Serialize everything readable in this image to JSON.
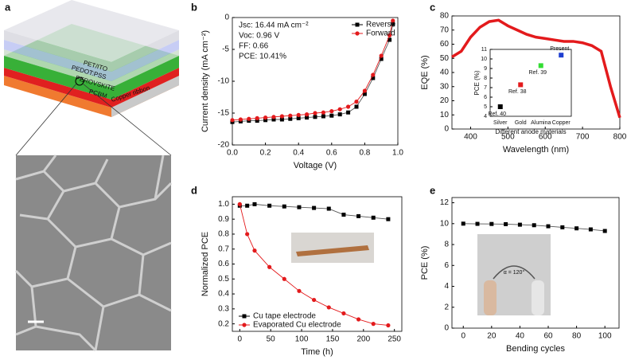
{
  "schematic": {
    "label": "a",
    "layers": [
      "PET/ITO",
      "PEDOT:PSS",
      "PEROVSKITE",
      "PCBM",
      "Copper ribbon"
    ]
  },
  "chart_data": [
    {
      "type": "line",
      "label": "b",
      "xlabel": "Voltage (V)",
      "ylabel": "Current density (mA cm⁻²)",
      "annotations": [
        "Jsc: 16.44 mA cm⁻²",
        "Voc: 0.96 V",
        "FF: 0.66",
        "PCE: 10.41%"
      ],
      "x": [
        0,
        0.05,
        0.1,
        0.15,
        0.2,
        0.25,
        0.3,
        0.35,
        0.4,
        0.45,
        0.5,
        0.55,
        0.6,
        0.65,
        0.7,
        0.75,
        0.8,
        0.85,
        0.9,
        0.95,
        0.97
      ],
      "series": [
        {
          "name": "Reverse",
          "color": "#000000",
          "marker": "square",
          "values": [
            -16.4,
            -16.3,
            -16.2,
            -16.2,
            -16.1,
            -16.0,
            -16.0,
            -15.9,
            -15.8,
            -15.7,
            -15.6,
            -15.5,
            -15.4,
            -15.2,
            -14.9,
            -14.0,
            -12.0,
            -9.5,
            -6.5,
            -3.5,
            -1.0
          ]
        },
        {
          "name": "Forward",
          "color": "#e31a1c",
          "marker": "circle",
          "values": [
            -16.1,
            -16.0,
            -15.9,
            -15.8,
            -15.7,
            -15.6,
            -15.5,
            -15.4,
            -15.3,
            -15.2,
            -15.0,
            -14.9,
            -14.7,
            -14.4,
            -14.0,
            -13.2,
            -11.5,
            -9.0,
            -6.0,
            -2.8,
            -0.5
          ]
        }
      ],
      "xlim": [
        0,
        1
      ],
      "xticks": [
        {
          "value": 0,
          "label": "0.0"
        },
        0.2,
        0.4,
        0.6,
        0.8,
        {
          "value": 1,
          "label": "1.0"
        }
      ],
      "ylim": [
        -20,
        0
      ],
      "yticks": [
        -20,
        -15,
        -10,
        -5,
        0
      ],
      "legend": "upper right"
    },
    {
      "type": "line",
      "label": "c",
      "xlabel": "Wavelength (nm)",
      "ylabel": "EQE (%)",
      "x": [
        350,
        375,
        400,
        425,
        450,
        475,
        500,
        525,
        550,
        575,
        600,
        625,
        650,
        675,
        700,
        725,
        750,
        775,
        800
      ],
      "series": [
        {
          "name": "EQE",
          "color": "#e31a1c",
          "values": [
            51,
            55,
            65,
            72,
            76,
            77,
            73,
            70,
            67,
            65,
            64,
            63,
            62,
            62,
            61,
            59,
            55,
            30,
            8
          ]
        }
      ],
      "xlim": [
        350,
        800
      ],
      "xticks": [
        400,
        500,
        600,
        700,
        800
      ],
      "ylim": [
        0,
        80
      ],
      "yticks": [
        0,
        10,
        20,
        30,
        40,
        50,
        60,
        70,
        80
      ]
    },
    {
      "type": "scatter",
      "xlabel": "Different anode materials",
      "ylabel": "PCE (%)",
      "categories": [
        "Silver",
        "Gold",
        "Alumina",
        "Copper"
      ],
      "values": [
        5.0,
        7.3,
        9.3,
        10.4
      ],
      "point_labels": [
        "Ref. 40",
        "Ref. 38",
        "Ref. 39",
        "Present"
      ],
      "colors": [
        "#000000",
        "#e31a1c",
        "#33dd33",
        "#1f3fd0"
      ],
      "ylim": [
        4,
        11
      ],
      "yticks": [
        4,
        5,
        6,
        7,
        8,
        9,
        10,
        11
      ]
    },
    {
      "type": "line",
      "label": "d",
      "xlabel": "Time (h)",
      "ylabel": "Normalized PCE",
      "x": [
        0,
        12,
        24,
        48,
        72,
        96,
        120,
        144,
        168,
        192,
        216,
        240
      ],
      "series": [
        {
          "name": "Cu tape electrode",
          "color": "#000000",
          "marker": "square",
          "values": [
            0.99,
            0.99,
            1.0,
            0.99,
            0.985,
            0.98,
            0.975,
            0.97,
            0.93,
            0.92,
            0.91,
            0.9
          ]
        },
        {
          "name": "Evaporated Cu electrode",
          "color": "#e31a1c",
          "marker": "circle",
          "values": [
            1.0,
            0.8,
            0.69,
            0.58,
            0.5,
            0.42,
            0.36,
            0.31,
            0.27,
            0.23,
            0.2,
            0.19
          ]
        }
      ],
      "xlim": [
        -12,
        262
      ],
      "xticks": [
        0,
        50,
        100,
        150,
        200,
        250
      ],
      "ylim": [
        0.15,
        1.05
      ],
      "yticks": [
        0.2,
        0.3,
        0.4,
        0.5,
        0.6,
        0.7,
        0.8,
        0.9,
        {
          "value": 1.0,
          "label": "1.0"
        }
      ],
      "legend": "lower left"
    },
    {
      "type": "line",
      "label": "e",
      "xlabel": "Bending cycles",
      "ylabel": "PCE (%)",
      "annotations": [
        "α = 120°"
      ],
      "x": [
        0,
        10,
        20,
        30,
        40,
        50,
        60,
        70,
        80,
        90,
        100
      ],
      "series": [
        {
          "name": "PCE",
          "color": "#000000",
          "marker": "square",
          "values": [
            10.0,
            9.98,
            9.97,
            9.95,
            9.9,
            9.85,
            9.75,
            9.65,
            9.55,
            9.45,
            9.3
          ]
        }
      ],
      "xlim": [
        -8,
        110
      ],
      "xticks": [
        0,
        20,
        40,
        60,
        80,
        100
      ],
      "ylim": [
        0,
        12.5
      ],
      "yticks": [
        0,
        2,
        4,
        6,
        8,
        10,
        12
      ]
    }
  ]
}
